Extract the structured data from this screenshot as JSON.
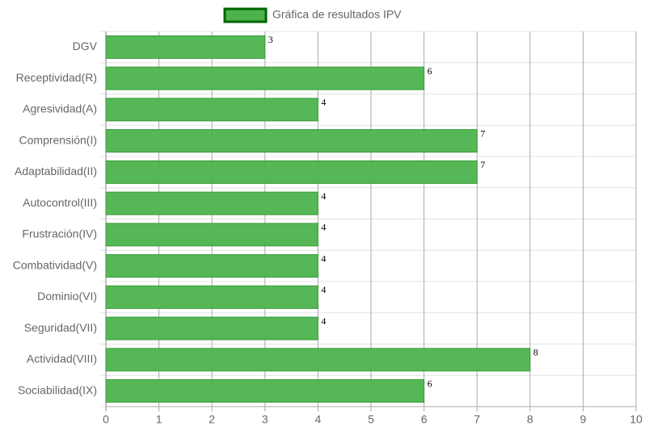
{
  "chart_data": {
    "type": "bar",
    "orientation": "horizontal",
    "categories": [
      "DGV",
      "Receptividad(R)",
      "Agresividad(A)",
      "Comprensión(I)",
      "Adaptabilidad(II)",
      "Autocontrol(III)",
      "Frustración(IV)",
      "Combatividad(V)",
      "Dominio(VI)",
      "Seguridad(VII)",
      "Actividad(VIII)",
      "Sociabilidad(IX)"
    ],
    "series": [
      {
        "name": "Gráfica de resultados IPV",
        "color": "#4cb34c",
        "values": [
          3,
          6,
          4,
          7,
          7,
          4,
          4,
          4,
          4,
          4,
          8,
          6
        ]
      }
    ],
    "xlim": [
      0,
      10
    ],
    "xticks": [
      0,
      1,
      2,
      3,
      4,
      5,
      6,
      7,
      8,
      9,
      10
    ],
    "grid": true,
    "legend": "top"
  }
}
